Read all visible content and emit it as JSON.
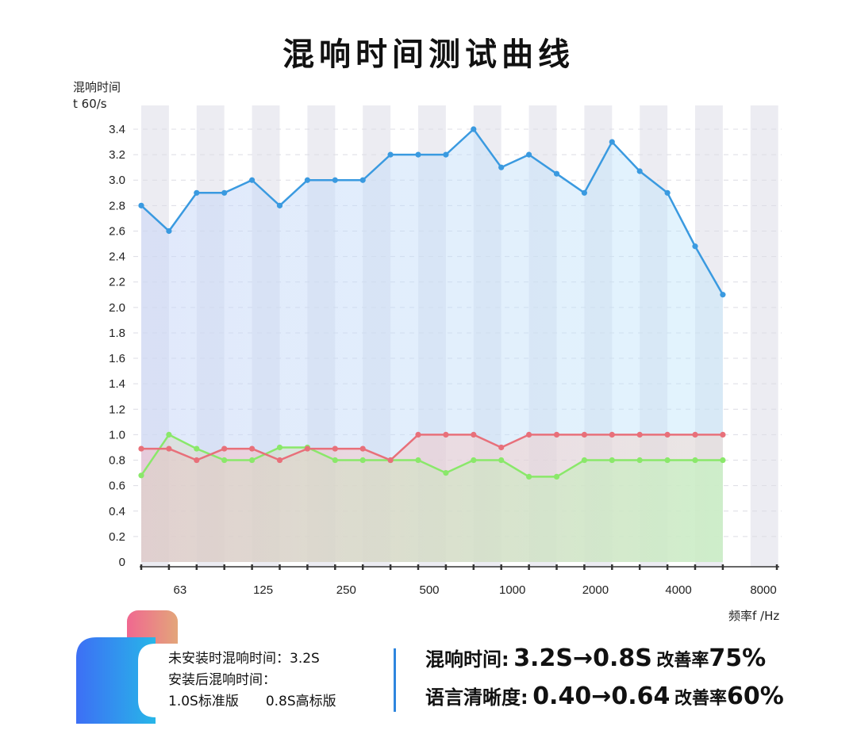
{
  "title": "混响时间测试曲线",
  "y_axis_label_line1": "混响时间",
  "y_axis_label_line2": "t 60/s",
  "x_axis_label": "频率f /Hz",
  "legend": {
    "line1": "未安装时混响时间：3.2S",
    "line2": "安装后混响时间：",
    "line3a": "1.0S标准版",
    "line3b": "0.8S高标版"
  },
  "stats": {
    "row1_label": "混响时间:",
    "row1_value": "3.2S→0.8S",
    "row1_rate_label": "改善率",
    "row1_rate": "75%",
    "row2_label": "语言清晰度:",
    "row2_value": "0.40→0.64",
    "row2_rate_label": "改善率",
    "row2_rate": "60%"
  },
  "colors": {
    "blue_line": "#3a9ae0",
    "red_line": "#e8707a",
    "green_line": "#8ae86a",
    "stripe": "#ececf2",
    "legend_blue": "#3d7ef5",
    "legend_pink": "#ee6f86",
    "divider": "#2e86de"
  },
  "chart_data": {
    "type": "line",
    "x_tick_labels": [
      "63",
      "125",
      "250",
      "500",
      "1000",
      "2000",
      "4000",
      "8000"
    ],
    "y_ticks": [
      "0",
      "0.2",
      "0.4",
      "0.6",
      "0.8",
      "1.0",
      "1.2",
      "1.4",
      "1.6",
      "1.8",
      "2.0",
      "2.2",
      "2.4",
      "2.6",
      "2.8",
      "3.0",
      "3.2",
      "3.4"
    ],
    "ylim": [
      0,
      3.6
    ],
    "n_points": 22,
    "series": [
      {
        "values": [
          2.8,
          2.6,
          2.9,
          2.9,
          3.0,
          2.8,
          3.0,
          3.0,
          3.0,
          3.2,
          3.2,
          3.2,
          3.4,
          3.1,
          3.2,
          3.05,
          2.9,
          3.3,
          3.07,
          2.9,
          2.48,
          2.1
        ],
        "color": "#3a9ae0"
      },
      {
        "values": [
          0.89,
          0.89,
          0.8,
          0.89,
          0.89,
          0.8,
          0.89,
          0.89,
          0.89,
          0.8,
          1.0,
          1.0,
          1.0,
          0.9,
          1.0,
          1.0,
          1.0,
          1.0,
          1.0,
          1.0,
          1.0,
          1.0
        ],
        "color": "#e8707a"
      },
      {
        "values": [
          0.68,
          1.0,
          0.89,
          0.8,
          0.8,
          0.9,
          0.9,
          0.8,
          0.8,
          0.8,
          0.8,
          0.7,
          0.8,
          0.8,
          0.67,
          0.67,
          0.8,
          0.8,
          0.8,
          0.8,
          0.8,
          0.8
        ],
        "color": "#8ae86a"
      }
    ],
    "grid": true
  }
}
